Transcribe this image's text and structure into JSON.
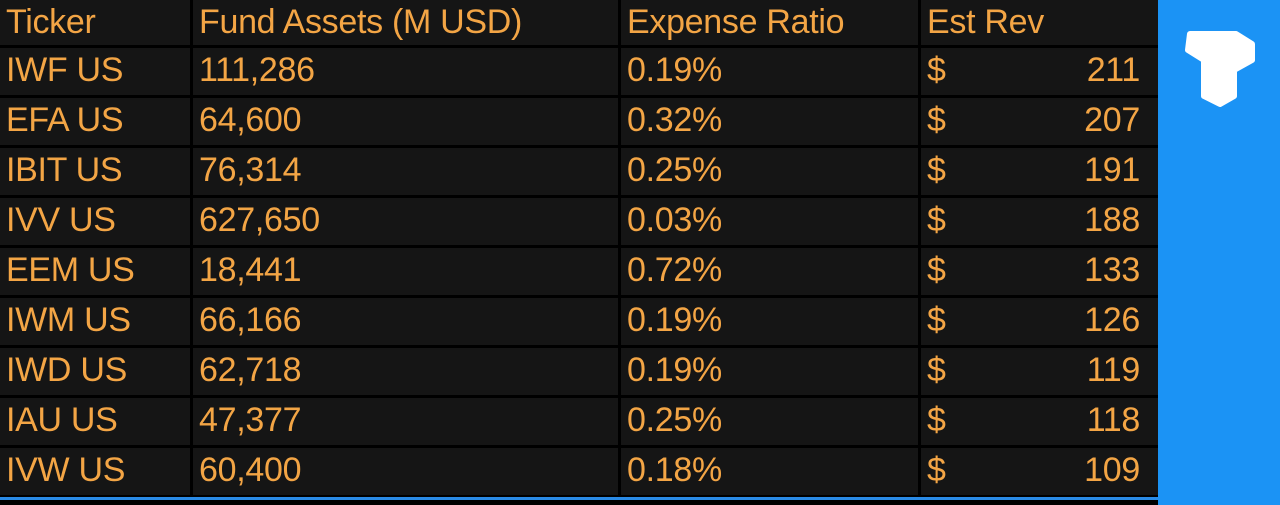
{
  "table": {
    "header": [
      "Ticker",
      "Fund Assets (M USD)",
      "Expense Ratio",
      "Est Rev"
    ],
    "rows": [
      [
        "IWF US",
        "111,286",
        "0.19%",
        "$",
        "211"
      ],
      [
        "EFA US",
        "64,600",
        "0.32%",
        "$",
        "207"
      ],
      [
        "IBIT US",
        "76,314",
        "0.25%",
        "$",
        "191"
      ],
      [
        "IVV US",
        "627,650",
        "0.03%",
        "$",
        "188"
      ],
      [
        "EEM US",
        "18,441",
        "0.72%",
        "$",
        "133"
      ],
      [
        "IWM US",
        "66,166",
        "0.19%",
        "$",
        "126"
      ],
      [
        "IWD US",
        "62,718",
        "0.19%",
        "$",
        "119"
      ],
      [
        "IAU US",
        "47,377",
        "0.25%",
        "$",
        "118"
      ],
      [
        "IVW US",
        "60,400",
        "0.18%",
        "$",
        "109"
      ]
    ]
  }
}
